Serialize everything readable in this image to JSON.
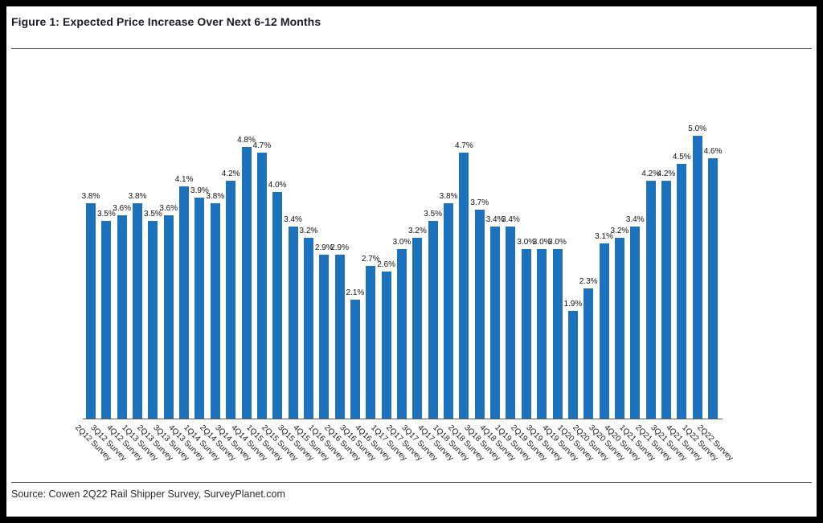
{
  "figure": {
    "title": "Figure 1: Expected Price Increase Over Next 6-12 Months",
    "source": "Source: Cowen 2Q22 Rail Shipper Survey, SurveyPlanet.com"
  },
  "colors": {
    "bar": "#1C72BC",
    "title_text": "#1b1b26",
    "rule": "#5a5a5a"
  },
  "chart_data": {
    "type": "bar",
    "title": "Expected Price Increase Over Next 6-12 Months",
    "xlabel": "",
    "ylabel": "",
    "ylim": [
      0,
      5.25
    ],
    "grid": false,
    "legend": "none",
    "value_label_format": "percent_one_decimal",
    "categories": [
      "2Q12 Survey",
      "3Q12 Survey",
      "4Q12 Survey",
      "1Q13 Survey",
      "2Q13 Survey",
      "3Q13 Survey",
      "4Q13 Survey",
      "1Q14 Survey",
      "2Q14 Survey",
      "3Q14 Survey",
      "4Q14 Survey",
      "1Q15 Survey",
      "2Q15 Survey",
      "3Q15 Survey",
      "4Q15 Survey",
      "1Q16 Survey",
      "2Q16 Survey",
      "3Q16 Survey",
      "4Q16 Survey",
      "1Q17 Survey",
      "2Q17 Survey",
      "3Q17 Survey",
      "4Q17 Survey",
      "1Q18 Survey",
      "2Q18 Survey",
      "3Q18 Survey",
      "4Q18 Survey",
      "1Q19 Survey",
      "2Q19 Survey",
      "3Q19 Survey",
      "4Q19 Survey",
      "1Q20 Survey",
      "2Q20 Survey",
      "3Q20 Survey",
      "4Q20 Survey",
      "1Q21 Survey",
      "2Q21 Survey",
      "3Q21 Survey",
      "4Q21 Survey",
      "1Q22 Survey",
      "2Q22 Survey"
    ],
    "values": [
      3.8,
      3.5,
      3.6,
      3.8,
      3.5,
      3.6,
      4.1,
      3.9,
      3.8,
      4.2,
      4.8,
      4.7,
      4.0,
      3.4,
      3.2,
      2.9,
      2.9,
      2.1,
      2.7,
      2.6,
      3.0,
      3.2,
      3.5,
      3.8,
      4.7,
      3.7,
      3.4,
      3.4,
      3.0,
      3.0,
      3.0,
      1.9,
      2.3,
      3.1,
      3.2,
      3.4,
      4.2,
      4.2,
      4.5,
      5.0,
      4.6
    ]
  }
}
